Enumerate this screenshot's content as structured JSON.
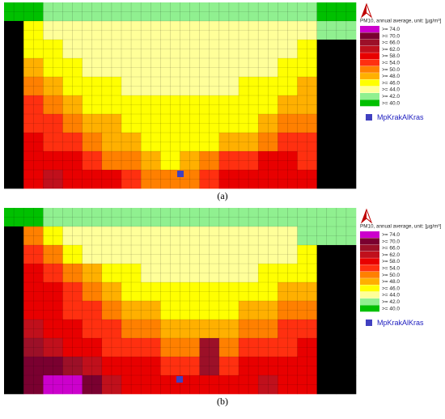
{
  "figure": {
    "legend": {
      "title": "PM10, annual average, unit: [µg/m³]",
      "levels": [
        {
          "value": 74,
          "label": ">= 74.0",
          "color": "#cc00cc"
        },
        {
          "value": 70,
          "label": ">= 70.0",
          "color": "#7a0030"
        },
        {
          "value": 66,
          "label": ">= 66.0",
          "color": "#9c1028"
        },
        {
          "value": 62,
          "label": ">= 62.0",
          "color": "#c0101c"
        },
        {
          "value": 58,
          "label": ">= 58.0",
          "color": "#e80000"
        },
        {
          "value": 54,
          "label": ">= 54.0",
          "color": "#ff3010"
        },
        {
          "value": 50,
          "label": ">= 50.0",
          "color": "#ff8000"
        },
        {
          "value": 48,
          "label": ">= 48.0",
          "color": "#ffb000"
        },
        {
          "value": 46,
          "label": ">= 46.0",
          "color": "#ffff00"
        },
        {
          "value": 44,
          "label": ">= 44.0",
          "color": "#ffff99"
        },
        {
          "value": 42,
          "label": ">= 42.0",
          "color": "#90f090"
        },
        {
          "value": 40,
          "label": ">= 40.0",
          "color": "#00c000"
        }
      ],
      "station": "MpKrakAlKras"
    },
    "panels": [
      {
        "caption": "(a)",
        "grid": [
          [
            40,
            40,
            42,
            42,
            42,
            42,
            42,
            42,
            42,
            42,
            42,
            42,
            42,
            42,
            42,
            42,
            40,
            40
          ],
          [
            null,
            46,
            44,
            44,
            44,
            44,
            44,
            44,
            44,
            44,
            44,
            44,
            44,
            44,
            44,
            44,
            42,
            42
          ],
          [
            null,
            46,
            46,
            44,
            44,
            44,
            44,
            44,
            44,
            44,
            44,
            44,
            44,
            44,
            44,
            46,
            null,
            null
          ],
          [
            null,
            48,
            46,
            46,
            44,
            44,
            44,
            44,
            44,
            44,
            44,
            44,
            44,
            44,
            46,
            46,
            null,
            null
          ],
          [
            null,
            50,
            48,
            46,
            46,
            46,
            44,
            44,
            44,
            44,
            44,
            44,
            46,
            46,
            46,
            48,
            null,
            null
          ],
          [
            null,
            54,
            50,
            48,
            46,
            46,
            46,
            46,
            46,
            46,
            46,
            46,
            46,
            46,
            48,
            48,
            null,
            null
          ],
          [
            null,
            54,
            54,
            50,
            48,
            48,
            46,
            46,
            46,
            46,
            46,
            46,
            46,
            48,
            50,
            50,
            null,
            null
          ],
          [
            null,
            58,
            54,
            54,
            50,
            48,
            48,
            46,
            46,
            46,
            46,
            48,
            48,
            50,
            54,
            54,
            null,
            null
          ],
          [
            null,
            58,
            58,
            58,
            54,
            50,
            50,
            48,
            46,
            48,
            50,
            54,
            54,
            58,
            58,
            54,
            null,
            null
          ],
          [
            null,
            58,
            62,
            58,
            58,
            58,
            54,
            50,
            50,
            50,
            54,
            58,
            58,
            58,
            58,
            58,
            null,
            null
          ]
        ]
      },
      {
        "caption": "(b)",
        "grid": [
          [
            40,
            40,
            42,
            42,
            42,
            42,
            42,
            42,
            42,
            42,
            42,
            42,
            42,
            42,
            42,
            42,
            42,
            42
          ],
          [
            null,
            50,
            46,
            44,
            44,
            44,
            44,
            44,
            44,
            44,
            44,
            44,
            44,
            44,
            44,
            42,
            42,
            42
          ],
          [
            null,
            54,
            50,
            46,
            44,
            44,
            44,
            44,
            44,
            44,
            44,
            44,
            44,
            44,
            44,
            46,
            null,
            null
          ],
          [
            null,
            58,
            54,
            50,
            48,
            46,
            46,
            44,
            44,
            44,
            44,
            44,
            44,
            46,
            46,
            46,
            null,
            null
          ],
          [
            null,
            58,
            58,
            54,
            50,
            48,
            46,
            46,
            46,
            46,
            46,
            46,
            46,
            46,
            48,
            48,
            null,
            null
          ],
          [
            null,
            58,
            58,
            54,
            54,
            50,
            48,
            48,
            46,
            46,
            46,
            46,
            48,
            48,
            50,
            50,
            null,
            null
          ],
          [
            null,
            62,
            58,
            58,
            54,
            54,
            50,
            50,
            48,
            48,
            48,
            48,
            50,
            50,
            54,
            54,
            null,
            null
          ],
          [
            null,
            66,
            62,
            58,
            58,
            54,
            54,
            54,
            50,
            50,
            66,
            50,
            54,
            54,
            54,
            58,
            null,
            null
          ],
          [
            null,
            70,
            70,
            66,
            62,
            58,
            58,
            58,
            54,
            54,
            66,
            54,
            58,
            58,
            58,
            58,
            null,
            null
          ],
          [
            null,
            70,
            74,
            74,
            70,
            62,
            58,
            58,
            58,
            58,
            58,
            58,
            58,
            62,
            58,
            58,
            null,
            null
          ]
        ]
      }
    ]
  }
}
